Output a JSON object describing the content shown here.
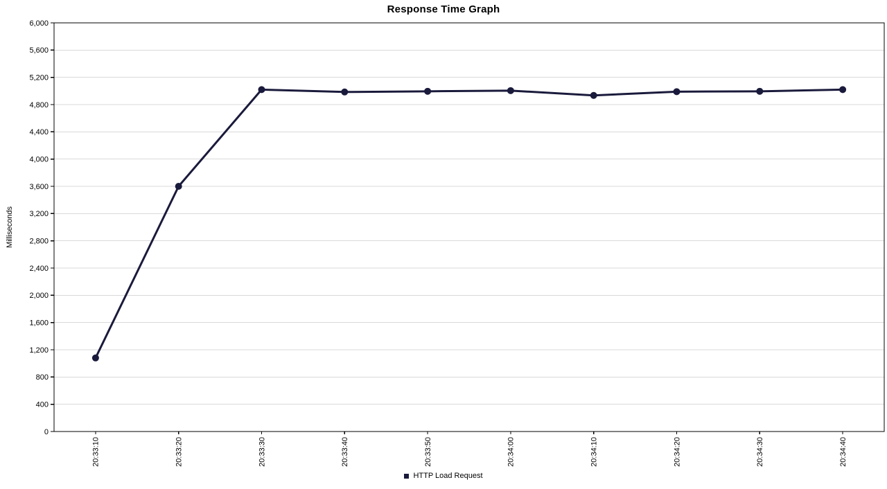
{
  "chart_data": {
    "type": "line",
    "title": "Response Time Graph",
    "ylabel": "Milliseconds",
    "xlabel": "",
    "x": [
      "20:33:10",
      "20:33:20",
      "20:33:30",
      "20:33:40",
      "20:33:50",
      "20:34:00",
      "20:34:10",
      "20:34:20",
      "20:34:30",
      "20:34:40"
    ],
    "series": [
      {
        "name": "HTTP Load Request",
        "color": "#1a1a3c",
        "values": [
          1080,
          3600,
          5020,
          4985,
          4995,
          5005,
          4935,
          4990,
          4995,
          5020
        ]
      }
    ],
    "ylim": [
      0,
      6000
    ],
    "ytick_step": 400,
    "ytick_labels": [
      "0",
      "400",
      "800",
      "1,200",
      "1,600",
      "2,000",
      "2,400",
      "2,800",
      "3,200",
      "3,600",
      "4,000",
      "4,400",
      "4,800",
      "5,200",
      "5,600",
      "6,000"
    ],
    "grid": true,
    "legend_position": "bottom-center",
    "colors": {
      "gridline": "#d9d9d9",
      "axis": "#000000",
      "background": "#ffffff"
    }
  }
}
